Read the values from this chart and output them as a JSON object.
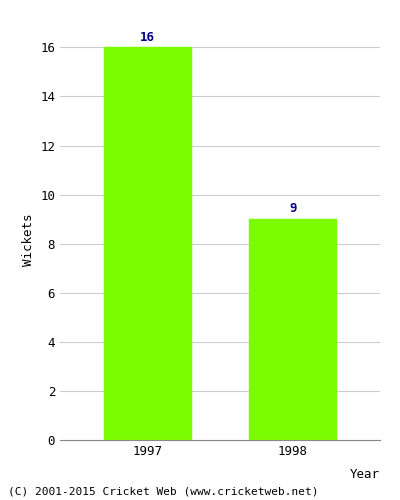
{
  "categories": [
    "1997",
    "1998"
  ],
  "values": [
    16,
    9
  ],
  "bar_color": "#7CFC00",
  "label_color": "#00008B",
  "ylabel": "Wickets",
  "xlabel": "Year",
  "ylim": [
    0,
    16
  ],
  "yticks": [
    0,
    2,
    4,
    6,
    8,
    10,
    12,
    14,
    16
  ],
  "background_color": "#ffffff",
  "footer_text": "(C) 2001-2015 Cricket Web (www.cricketweb.net)",
  "label_fontsize": 9,
  "tick_fontsize": 9,
  "axis_label_fontsize": 9,
  "footer_fontsize": 8,
  "bar_width": 0.6
}
